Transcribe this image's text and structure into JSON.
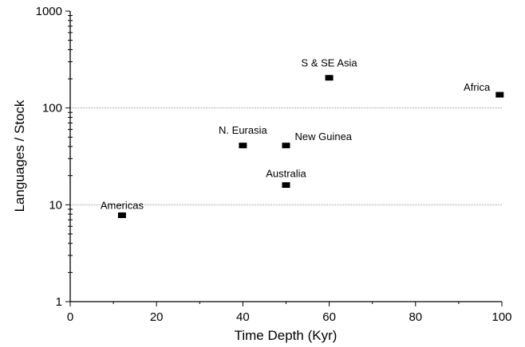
{
  "chart_data": {
    "type": "scatter",
    "title": "",
    "xlabel": "Time Depth (Kyr)",
    "ylabel": "Languages / Stock",
    "xlim": [
      0,
      100
    ],
    "ylim": [
      1,
      1000
    ],
    "y_scale": "log",
    "x_ticks": [
      0,
      20,
      40,
      60,
      80,
      100
    ],
    "y_ticks": [
      1,
      10,
      100,
      1000
    ],
    "grid": "horizontal gridlines at 10 and 100",
    "legend": "none",
    "marker": "filled black rectangle",
    "points": [
      {
        "label": "Americas",
        "x": 12,
        "y": 7.8
      },
      {
        "label": "N. Eurasia",
        "x": 40,
        "y": 41
      },
      {
        "label": "New Guinea",
        "x": 50,
        "y": 41
      },
      {
        "label": "Australia",
        "x": 50,
        "y": 16
      },
      {
        "label": "S & SE Asia",
        "x": 60,
        "y": 205
      },
      {
        "label": "Africa",
        "x": 99.5,
        "y": 137
      }
    ]
  }
}
